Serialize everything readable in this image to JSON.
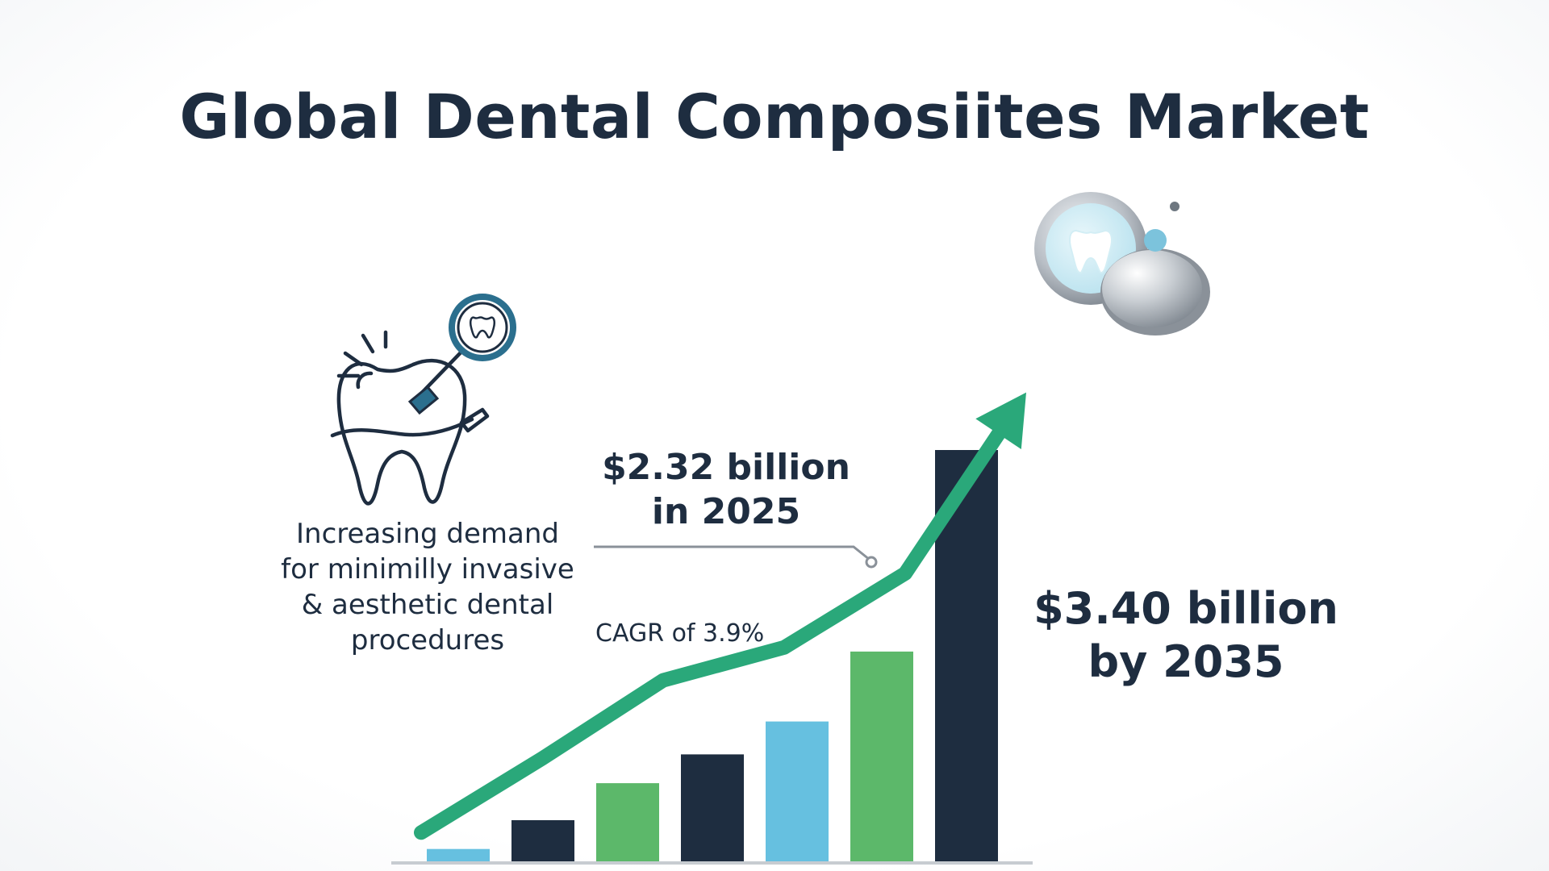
{
  "title": "Global Dental Composiites Market",
  "driver_text": "Increasing demand\nfor minimilly invasive\n& aesthetic dental\nprocedures",
  "callouts": {
    "value_2025": "$2.32 billion\nin 2025",
    "value_2035": "$3.40 billion\nby 2035",
    "cagr": "CAGR of 3.9%"
  },
  "icons": {
    "left": "tooth-with-dental-mirror-icon",
    "right": "tooth-mirror-and-composite-disc-icon"
  },
  "colors": {
    "navy": "#1e2d40",
    "light_blue": "#66c0e0",
    "green": "#5cb86a",
    "trend_arrow": "#2aa87a",
    "icon_teal": "#2b6f8e"
  },
  "chart_data": {
    "type": "bar",
    "title": "Global Dental Composiites Market",
    "xlabel": "",
    "ylabel": "",
    "axis_labels_shown": false,
    "grid": false,
    "legend": "none",
    "ylim": [
      0,
      100
    ],
    "values": [
      3,
      10,
      19,
      26,
      34,
      51,
      100
    ],
    "bar_colors": [
      "#66c0e0",
      "#1e2d40",
      "#5cb86a",
      "#1e2d40",
      "#66c0e0",
      "#5cb86a",
      "#1e2d40"
    ],
    "trend_arrow": {
      "color": "#2aa87a",
      "values": [
        7,
        25,
        44,
        52,
        70,
        114
      ]
    }
  }
}
